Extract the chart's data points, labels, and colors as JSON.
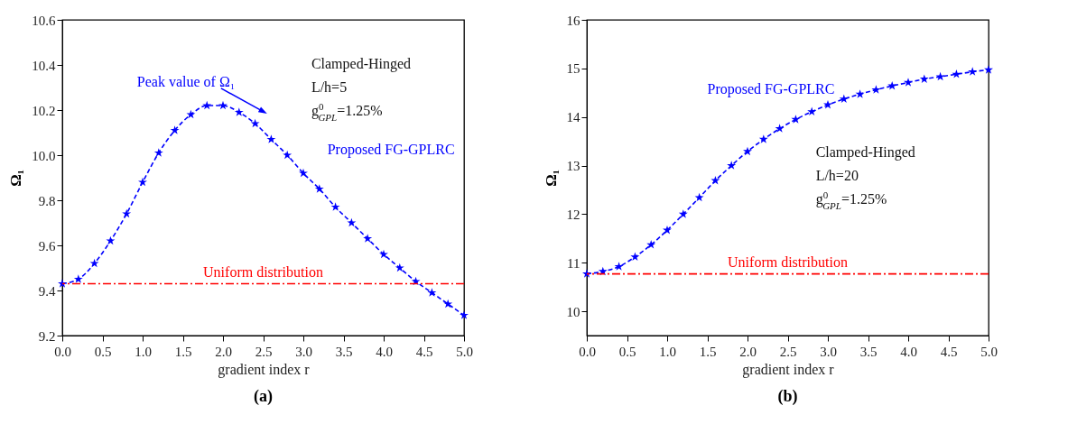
{
  "chart_data": [
    {
      "type": "line",
      "title": "(a)",
      "xlabel": "gradient index r",
      "ylabel": "Ω₁",
      "x": [
        0,
        0.2,
        0.4,
        0.6,
        0.8,
        1.0,
        1.2,
        1.4,
        1.6,
        1.8,
        2.0,
        2.2,
        2.4,
        2.6,
        2.8,
        3.0,
        3.2,
        3.4,
        3.6,
        3.8,
        4.0,
        4.2,
        4.4,
        4.6,
        4.8,
        5.0
      ],
      "series": [
        {
          "name": "Proposed FG-GPLRC",
          "color": "#0000ff",
          "line_style": "dashed",
          "marker": "star",
          "values": [
            9.43,
            9.45,
            9.52,
            9.62,
            9.74,
            9.88,
            10.01,
            10.11,
            10.18,
            10.22,
            10.22,
            10.19,
            10.14,
            10.07,
            10.0,
            9.92,
            9.85,
            9.77,
            9.7,
            9.63,
            9.56,
            9.5,
            9.44,
            9.39,
            9.34,
            9.29
          ]
        }
      ],
      "ref_lines": [
        {
          "axis": "y",
          "value": 9.43,
          "label": "Uniform distribution",
          "color": "#ff0000",
          "line_style": "dashdot"
        }
      ],
      "annotations": [
        "Clamped-Hinged",
        "L/h=5",
        "g$^{0}$$_{GPL}$=1.25%",
        "Peak value of Ω₁"
      ],
      "xlim": [
        0,
        5
      ],
      "xticks": [
        {
          "value": 0,
          "label": "0.0"
        },
        0.5,
        {
          "value": 1,
          "label": "1.0"
        },
        1.5,
        {
          "value": 2,
          "label": "2.0"
        },
        2.5,
        {
          "value": 3,
          "label": "3.0"
        },
        3.5,
        {
          "value": 4,
          "label": "4.0"
        },
        4.5,
        {
          "value": 5,
          "label": "5.0"
        }
      ],
      "ylim": [
        9.2,
        10.6
      ],
      "yticks": [
        9.2,
        9.4,
        9.6,
        9.8,
        {
          "value": 10,
          "label": "10.0"
        },
        10.2,
        10.4,
        10.6
      ],
      "grid": false
    },
    {
      "type": "line",
      "title": "(b)",
      "xlabel": "gradient index r",
      "ylabel": "Ω₁",
      "x": [
        0,
        0.2,
        0.4,
        0.6,
        0.8,
        1.0,
        1.2,
        1.4,
        1.6,
        1.8,
        2.0,
        2.2,
        2.4,
        2.6,
        2.8,
        3.0,
        3.2,
        3.4,
        3.6,
        3.8,
        4.0,
        4.2,
        4.4,
        4.6,
        4.8,
        5.0
      ],
      "series": [
        {
          "name": "Proposed FG-GPLRC",
          "color": "#0000ff",
          "line_style": "dashed",
          "marker": "star",
          "values": [
            10.77,
            10.82,
            10.92,
            11.12,
            11.37,
            11.67,
            12.0,
            12.34,
            12.69,
            13.0,
            13.29,
            13.54,
            13.76,
            13.95,
            14.11,
            14.25,
            14.37,
            14.47,
            14.56,
            14.64,
            14.71,
            14.78,
            14.83,
            14.88,
            14.93,
            14.97
          ]
        }
      ],
      "ref_lines": [
        {
          "axis": "y",
          "value": 10.77,
          "label": "Uniform distribution",
          "color": "#ff0000",
          "line_style": "dashdot"
        }
      ],
      "annotations": [
        "Clamped-Hinged",
        "L/h=20",
        "g$^{0}$$_{GPL}$=1.25%"
      ],
      "xlim": [
        0,
        5
      ],
      "xticks": [
        {
          "value": 0,
          "label": "0.0"
        },
        0.5,
        {
          "value": 1,
          "label": "1.0"
        },
        1.5,
        {
          "value": 2,
          "label": "2.0"
        },
        2.5,
        {
          "value": 3,
          "label": "3.0"
        },
        3.5,
        {
          "value": 4,
          "label": "4.0"
        },
        4.5,
        {
          "value": 5,
          "label": "5.0"
        }
      ],
      "ylim": [
        9.5,
        16
      ],
      "yticks": [
        10,
        11,
        12,
        13,
        14,
        15,
        16
      ],
      "grid": false
    }
  ]
}
